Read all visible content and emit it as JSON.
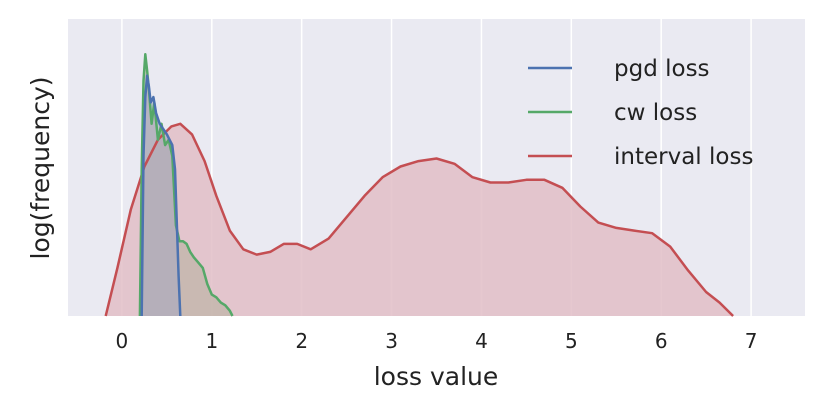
{
  "chart_data": {
    "type": "area",
    "title": "",
    "xlabel": "loss value",
    "ylabel": "log(frequency)",
    "xlim": [
      -0.6,
      7.6
    ],
    "ylim": [
      0,
      1.0
    ],
    "x_ticks": [
      0,
      1,
      2,
      3,
      4,
      5,
      6,
      7
    ],
    "y_ticks": [],
    "grid": true,
    "legend": "top-right",
    "background": "#eaeaf2",
    "series": [
      {
        "name": "pgd loss",
        "color": "#4c72b0",
        "fill": "#a8a8c0",
        "x": [
          0.22,
          0.24,
          0.26,
          0.28,
          0.3,
          0.32,
          0.35,
          0.38,
          0.42,
          0.46,
          0.5,
          0.53,
          0.56,
          0.59,
          0.61,
          0.63,
          0.65
        ],
        "y": [
          0.0,
          0.6,
          0.82,
          0.9,
          0.86,
          0.8,
          0.82,
          0.76,
          0.72,
          0.7,
          0.68,
          0.66,
          0.64,
          0.55,
          0.35,
          0.15,
          0.0
        ]
      },
      {
        "name": "cw loss",
        "color": "#55a868",
        "fill": "#b8b0a0",
        "x": [
          0.2,
          0.22,
          0.24,
          0.26,
          0.28,
          0.3,
          0.33,
          0.36,
          0.4,
          0.44,
          0.48,
          0.52,
          0.56,
          0.6,
          0.64,
          0.68,
          0.72,
          0.76,
          0.8,
          0.85,
          0.9,
          0.95,
          1.0,
          1.05,
          1.1,
          1.15,
          1.2,
          1.23
        ],
        "y": [
          0.0,
          0.55,
          0.88,
          0.98,
          0.92,
          0.85,
          0.72,
          0.8,
          0.66,
          0.72,
          0.64,
          0.66,
          0.6,
          0.34,
          0.28,
          0.28,
          0.27,
          0.24,
          0.22,
          0.2,
          0.18,
          0.12,
          0.08,
          0.07,
          0.05,
          0.04,
          0.02,
          0.0
        ]
      },
      {
        "name": "interval loss",
        "color": "#c44e52",
        "fill": "#e2bec7",
        "x": [
          -0.18,
          -0.05,
          0.1,
          0.25,
          0.4,
          0.55,
          0.65,
          0.78,
          0.92,
          1.05,
          1.2,
          1.35,
          1.5,
          1.65,
          1.8,
          1.95,
          2.1,
          2.3,
          2.5,
          2.7,
          2.9,
          3.1,
          3.3,
          3.5,
          3.7,
          3.9,
          4.1,
          4.3,
          4.5,
          4.7,
          4.9,
          5.1,
          5.3,
          5.5,
          5.7,
          5.9,
          6.1,
          6.3,
          6.5,
          6.65,
          6.8
        ],
        "y": [
          0.0,
          0.18,
          0.4,
          0.56,
          0.66,
          0.71,
          0.72,
          0.68,
          0.58,
          0.45,
          0.32,
          0.25,
          0.23,
          0.24,
          0.27,
          0.27,
          0.25,
          0.29,
          0.37,
          0.45,
          0.52,
          0.56,
          0.58,
          0.59,
          0.57,
          0.52,
          0.5,
          0.5,
          0.51,
          0.51,
          0.48,
          0.41,
          0.35,
          0.33,
          0.32,
          0.31,
          0.26,
          0.17,
          0.09,
          0.05,
          0.0
        ]
      }
    ]
  }
}
